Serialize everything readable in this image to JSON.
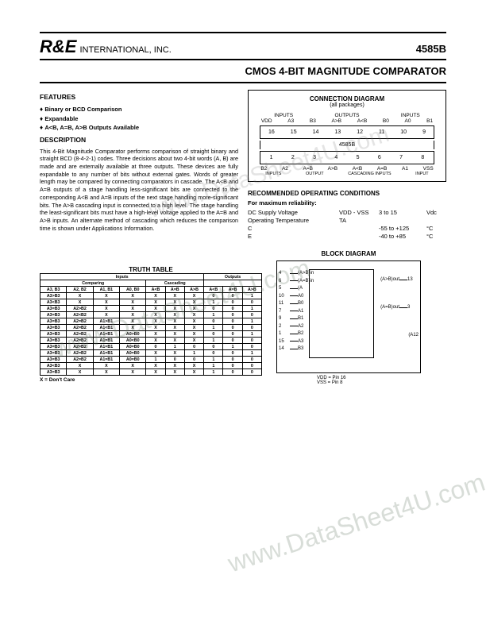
{
  "header": {
    "logo": "R&E",
    "suffix": "INTERNATIONAL, INC.",
    "part": "4585B"
  },
  "title": "CMOS 4-BIT MAGNITUDE COMPARATOR",
  "features": {
    "head": "FEATURES",
    "items": [
      "Binary or BCD Comparison",
      "Expandable",
      "A<B, A=B, A>B Outputs Available"
    ]
  },
  "description": {
    "head": "DESCRIPTION",
    "text": "This 4-Bit Magnitude Comparator performs comparison of straight binary and straight BCD (8-4-2-1) codes. Three decisions about two 4-bit words (A, B) are made and are externally available at three outputs. These devices are fully expandable to any number of bits without external gates. Words of greater length may be compared by connecting comparators in cascade. The A<B and A=B outputs of a stage handling less-significant bits are connected to the corresponding A<B and A=B inputs of the next stage handling more-significant bits. The A>B cascading input is connected to a high level. The stage handling the least-significant bits must have a high-level voltage applied to the A=B and A>B inputs. An alternate method of cascading which reduces the comparison time is shown under Applications Information."
  },
  "connection": {
    "title": "CONNECTION DIAGRAM",
    "sub": "(all packages)",
    "top_groups": [
      "INPUTS",
      "OUTPUTS",
      "INPUTS"
    ],
    "top_pins": [
      "VDD",
      "A3",
      "B3",
      "A>B",
      "A<B",
      "B0",
      "A0",
      "B1"
    ],
    "top_nums": [
      "16",
      "15",
      "14",
      "13",
      "12",
      "11",
      "10",
      "9"
    ],
    "chip": "4585B",
    "bot_nums": [
      "1",
      "2",
      "3",
      "4",
      "5",
      "6",
      "7",
      "8"
    ],
    "bot_pins": [
      "B2",
      "A2",
      "A=B",
      "A>B",
      "A<B",
      "A=B",
      "A1",
      "VSS"
    ],
    "bot_groups": [
      "INPUTS",
      "OUTPUT",
      "CASCADING INPUTS",
      "INPUT"
    ]
  },
  "recommended": {
    "head": "RECOMMENDED OPERATING CONDITIONS",
    "sub": "For maximum reliability:",
    "rows": [
      {
        "label": "DC Supply Voltage",
        "sym": "VDD - VSS",
        "val": "3 to 15",
        "unit": "Vdc"
      },
      {
        "label": "Operating Temperature",
        "sym": "TA",
        "val": "",
        "unit": ""
      },
      {
        "label": "C",
        "sym": "",
        "val": "-55 to +125",
        "unit": "°C"
      },
      {
        "label": "E",
        "sym": "",
        "val": "-40 to +85",
        "unit": "°C"
      }
    ]
  },
  "truth": {
    "title": "TRUTH TABLE",
    "groups": [
      "Inputs",
      "Outputs"
    ],
    "subgroups": [
      "Comparing",
      "Cascading",
      ""
    ],
    "cols": [
      "A3, B3",
      "A2, B2",
      "A1, B1",
      "A0, B0",
      "A<B",
      "A=B",
      "A>B",
      "A<B",
      "A=B",
      "A>B"
    ],
    "rows": [
      [
        "A3>B3",
        "X",
        "X",
        "X",
        "X",
        "X",
        "X",
        "0",
        "0",
        "1"
      ],
      [
        "A3<B3",
        "X",
        "X",
        "X",
        "X",
        "X",
        "X",
        "1",
        "0",
        "0"
      ],
      [
        "A3=B3",
        "A2>B2",
        "X",
        "X",
        "X",
        "X",
        "X",
        "0",
        "0",
        "1"
      ],
      [
        "A3=B3",
        "A2<B2",
        "X",
        "X",
        "X",
        "X",
        "X",
        "1",
        "0",
        "0"
      ],
      [
        "A3=B3",
        "A2=B2",
        "A1>B1",
        "X",
        "X",
        "X",
        "X",
        "0",
        "0",
        "1"
      ],
      [
        "A3=B3",
        "A2=B2",
        "A1<B1",
        "X",
        "X",
        "X",
        "X",
        "1",
        "0",
        "0"
      ],
      [
        "A3=B3",
        "A2=B2",
        "A1=B1",
        "A0>B0",
        "X",
        "X",
        "X",
        "0",
        "0",
        "1"
      ],
      [
        "A3=B3",
        "A2=B2",
        "A1=B1",
        "A0<B0",
        "X",
        "X",
        "X",
        "1",
        "0",
        "0"
      ],
      [
        "A3=B3",
        "A2=B2",
        "A1=B1",
        "A0=B0",
        "0",
        "1",
        "0",
        "0",
        "1",
        "0"
      ],
      [
        "A3=B3",
        "A2=B2",
        "A1=B1",
        "A0=B0",
        "X",
        "X",
        "1",
        "0",
        "0",
        "1"
      ],
      [
        "A3=B3",
        "A2=B2",
        "A1=B1",
        "A0=B0",
        "1",
        "0",
        "0",
        "1",
        "0",
        "0"
      ],
      [
        "A3<B3",
        "X",
        "X",
        "X",
        "X",
        "X",
        "X",
        "1",
        "0",
        "0"
      ],
      [
        "A3=B3",
        "X",
        "X",
        "X",
        "X",
        "X",
        "X",
        "1",
        "0",
        "0"
      ]
    ],
    "note": "X = Don't Care"
  },
  "block": {
    "title": "BLOCK DIAGRAM",
    "left_pins": [
      {
        "n": "4",
        "l": "(A>B)in"
      },
      {
        "n": "6",
        "l": "(A=B)in"
      },
      {
        "n": "5",
        "l": "(A<B)in"
      },
      {
        "n": "10",
        "l": "A0"
      },
      {
        "n": "11",
        "l": "B0"
      },
      {
        "n": "7",
        "l": "A1"
      },
      {
        "n": "9",
        "l": "B1"
      },
      {
        "n": "2",
        "l": "A2"
      },
      {
        "n": "1",
        "l": "B2"
      },
      {
        "n": "15",
        "l": "A3"
      },
      {
        "n": "14",
        "l": "B3"
      }
    ],
    "right_pins": [
      {
        "n": "13",
        "l": "(A>B)out"
      },
      {
        "n": "3",
        "l": "(A=B)out"
      },
      {
        "n": "12",
        "l": "(A<B)out"
      }
    ],
    "footer": "VDD = Pin 16\nVSS = Pin 8"
  },
  "watermarks": [
    "www.DataSheet4U.com",
    "www.DataSheet4U.com",
    "www.DataSheet4U.com"
  ]
}
